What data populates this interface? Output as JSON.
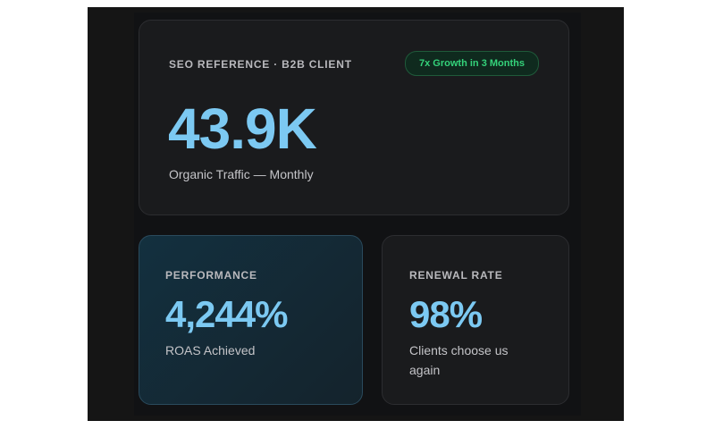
{
  "top_card": {
    "label": "SEO REFERENCE · B2B CLIENT",
    "badge": "7x Growth in 3 Months",
    "value": "43.9K",
    "caption": "Organic Traffic — Monthly"
  },
  "cards": [
    {
      "label": "PERFORMANCE",
      "value": "4,244%",
      "caption": "ROAS Achieved"
    },
    {
      "label": "RENEWAL RATE",
      "value": "98%",
      "caption": "Clients choose us again"
    }
  ]
}
